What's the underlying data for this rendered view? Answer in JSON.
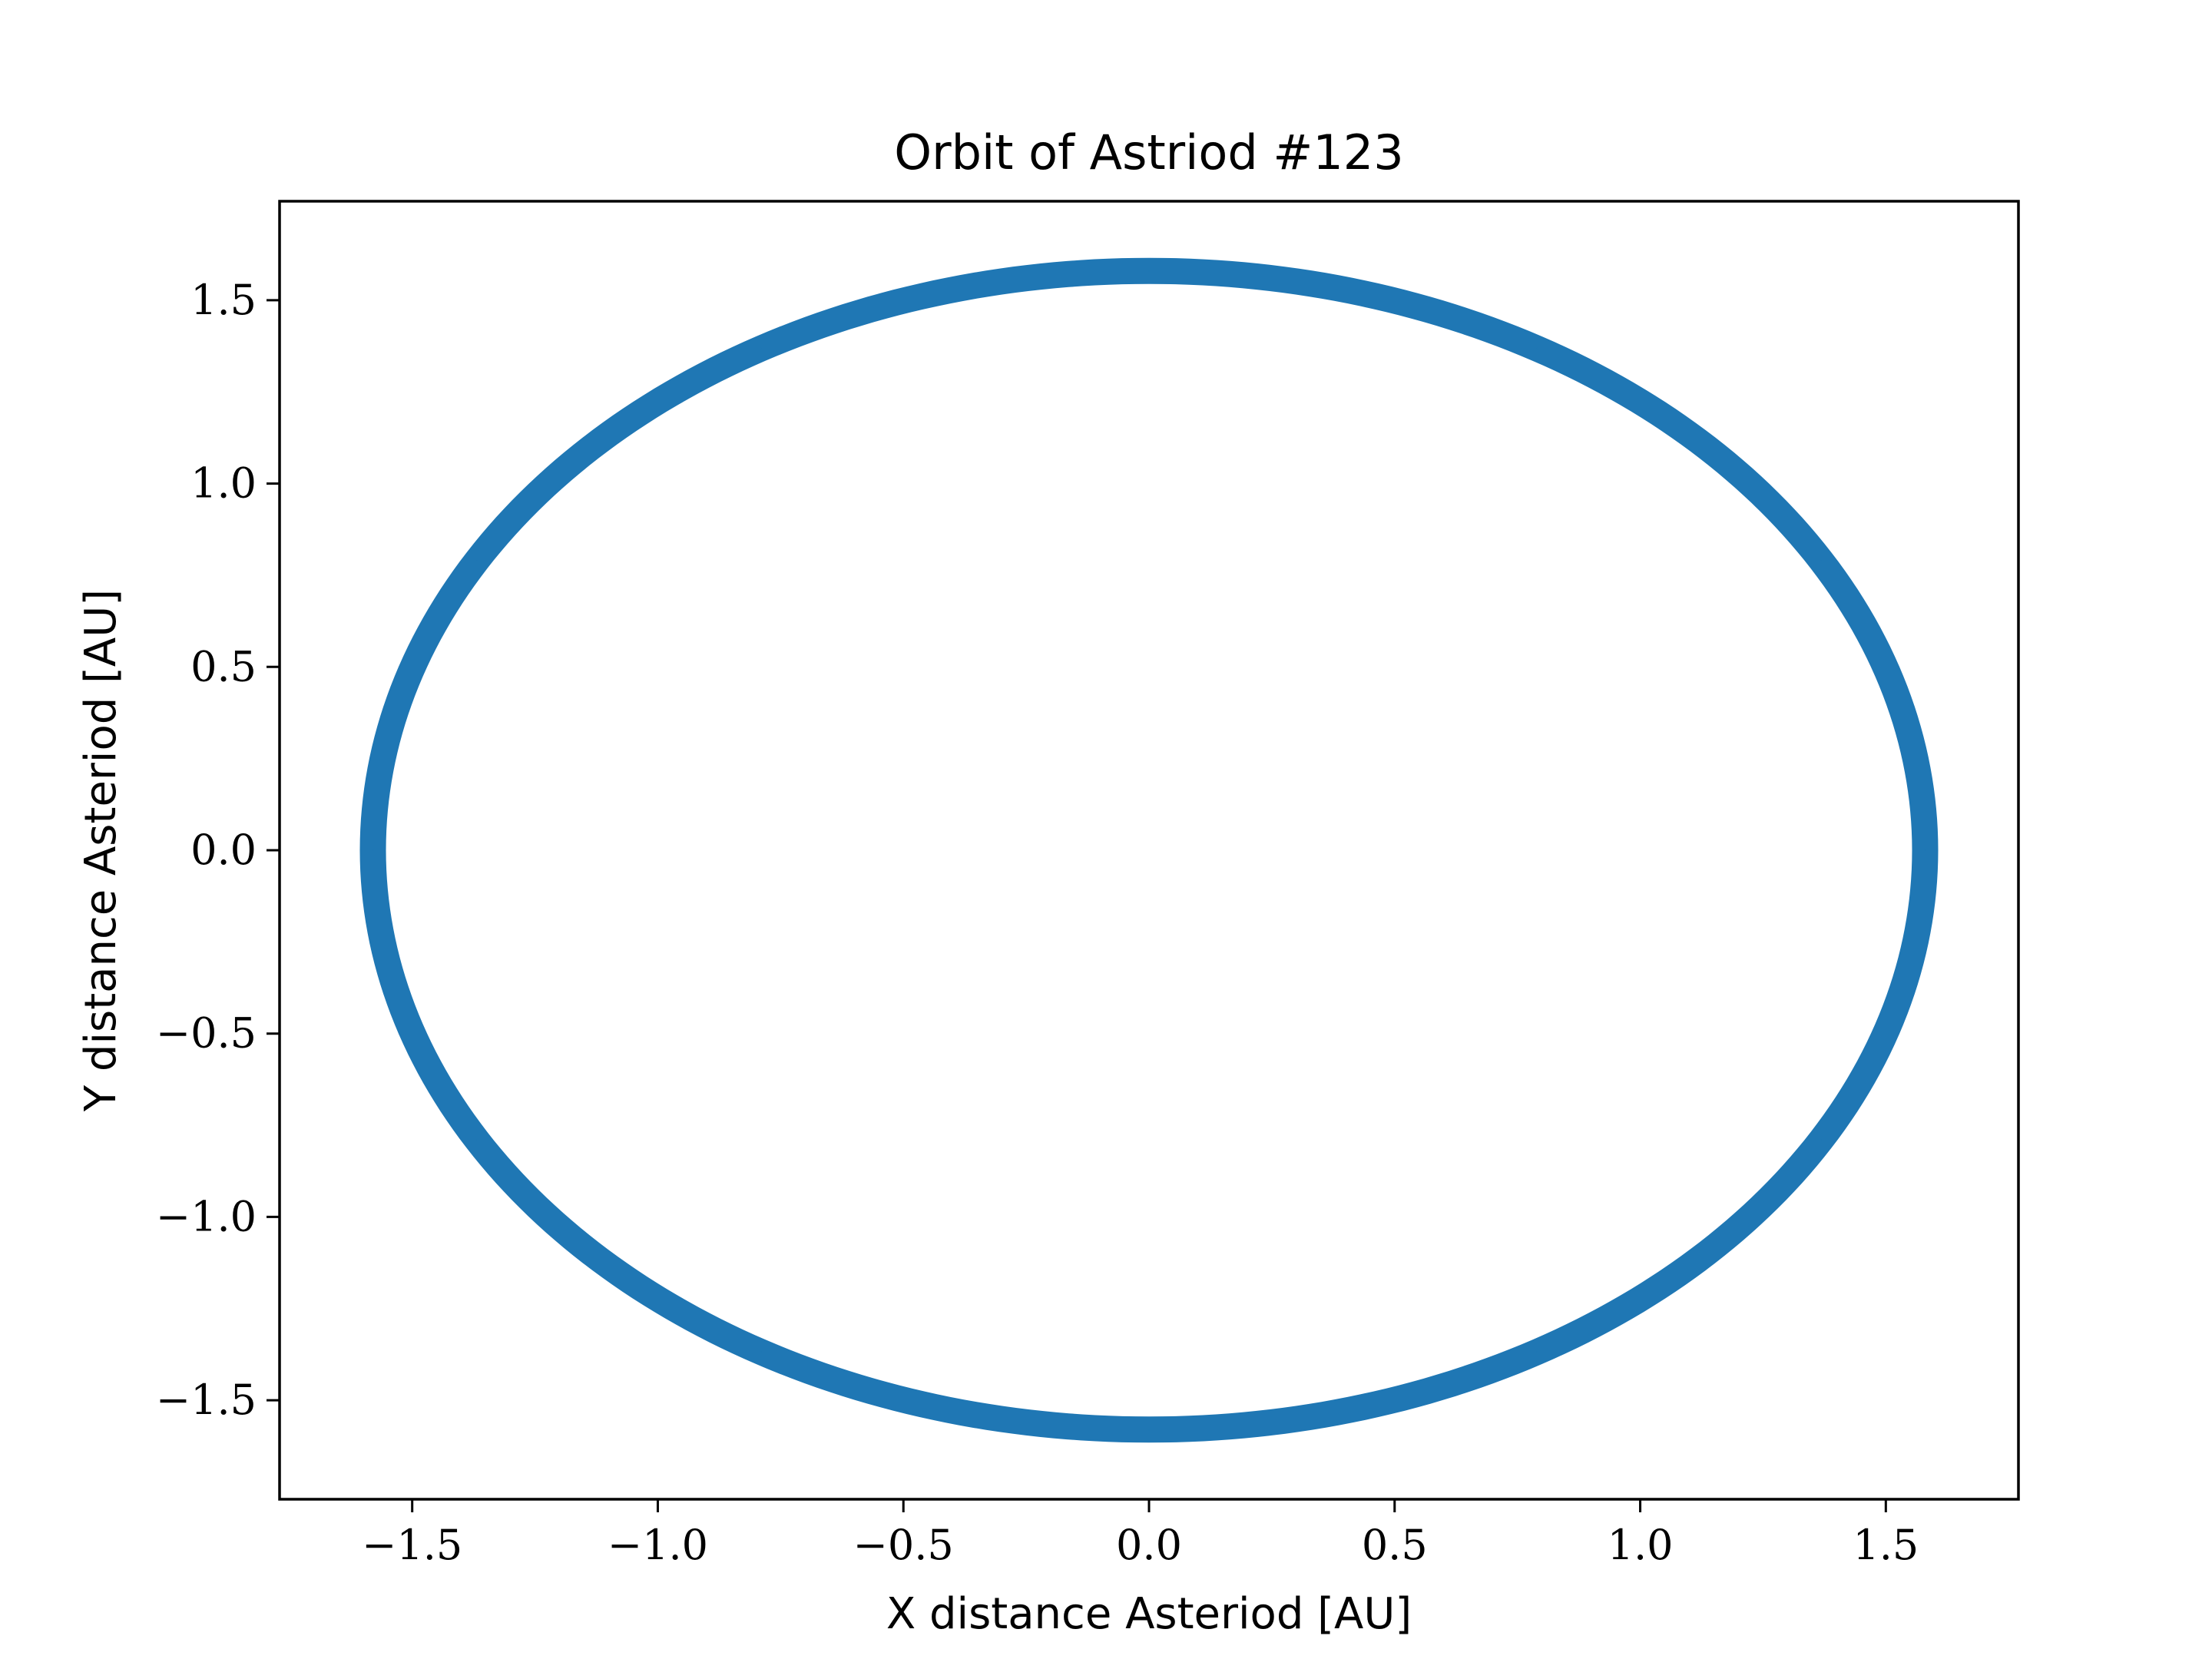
{
  "chart_data": {
    "type": "line",
    "title": "Orbit of Astriod #123",
    "xlabel": "X distance Asteriod [AU]",
    "ylabel": "Y distance Asteriod [AU]",
    "xlim": [
      -1.77,
      1.77
    ],
    "ylim": [
      -1.77,
      1.77
    ],
    "xticks": [
      -1.5,
      -1.0,
      -0.5,
      0.0,
      0.5,
      1.0,
      1.5
    ],
    "yticks": [
      -1.5,
      -1.0,
      -0.5,
      0.0,
      0.5,
      1.0,
      1.5
    ],
    "xtick_labels": [
      "−1.5",
      "−1.0",
      "−0.5",
      "0.0",
      "0.5",
      "1.0",
      "1.5"
    ],
    "ytick_labels": [
      "−1.5",
      "−1.0",
      "−0.5",
      "0.0",
      "0.5",
      "1.0",
      "1.5"
    ],
    "grid": false,
    "legend": false,
    "series": [
      {
        "color": "#1f77b4",
        "shape": "ellipse",
        "center": [
          0.0,
          0.0
        ],
        "semi_axis_x": 1.58,
        "semi_axis_y": 1.58,
        "x": [
          1.58,
          1.368,
          0.79,
          0.0,
          -0.79,
          -1.368,
          -1.58,
          -1.368,
          -0.79,
          0.0,
          0.79,
          1.368,
          1.58
        ],
        "y": [
          0.0,
          0.79,
          1.368,
          1.58,
          1.368,
          0.79,
          0.0,
          -0.79,
          -1.368,
          -1.58,
          -1.368,
          -0.79,
          0.0
        ]
      }
    ]
  }
}
